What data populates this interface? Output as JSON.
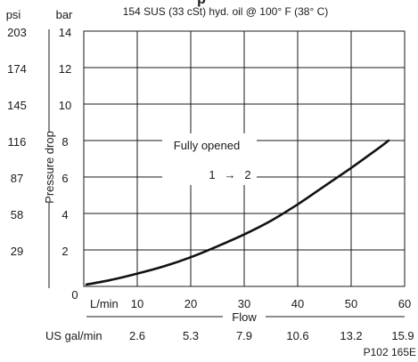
{
  "header_fragment": "p",
  "chart_data": {
    "type": "line",
    "title": "154 SUS (33 cSt) hyd. oil @ 100° F (38° C)",
    "ylabel": "Pressure drop",
    "xlabel": "Flow",
    "left_unit": "psi",
    "right_unit": "bar",
    "psi_ticks": [
      "203",
      "174",
      "145",
      "116",
      "87",
      "58",
      "29"
    ],
    "bar_ticks": [
      "14",
      "12",
      "10",
      "8",
      "6",
      "4",
      "2",
      "0"
    ],
    "xlim": [
      0,
      60
    ],
    "ylim": [
      0,
      14
    ],
    "x_ticks": [
      "10",
      "20",
      "30",
      "40",
      "50",
      "60"
    ],
    "x_unit": "L/min",
    "gal_unit": "US gal/min",
    "gal_ticks": [
      "2.6",
      "5.3",
      "7.9",
      "10.6",
      "13.2",
      "15.9"
    ],
    "figure_code": "P102 165E",
    "grid": true,
    "annotation": {
      "text": "Fully opened",
      "port_from": "1",
      "arrow": "→",
      "port_to": "2"
    },
    "series": [
      {
        "x": [
          0.5,
          5,
          10,
          15,
          20,
          25,
          30,
          35,
          40,
          45,
          50,
          55,
          57
        ],
        "y": [
          0.1,
          0.35,
          0.7,
          1.1,
          1.6,
          2.2,
          2.85,
          3.6,
          4.5,
          5.5,
          6.5,
          7.55,
          8.0
        ]
      }
    ]
  }
}
